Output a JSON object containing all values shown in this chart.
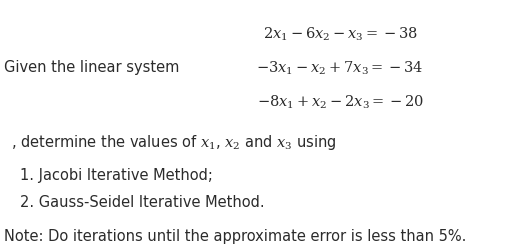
{
  "background_color": "#ffffff",
  "eq1": "$2x_1-6x_2-x_3=-38$",
  "eq2": "$-3x_1-x_2+7x_3=-34$",
  "eq3": "$-8x_1+x_2-2x_3=-20$",
  "prefix": "Given the linear system",
  "middle_text1": ", determine the values of ",
  "middle_math": "$x_1$, $x_2$",
  "middle_text2": "and ",
  "middle_math2": "$x_3$",
  "middle_text3": " using",
  "item1": "1. Jacobi Iterative Method;",
  "item2": "2. Gauss-Seidel Iterative Method.",
  "note": "Note: Do iterations until the approximate error is less than 5%.",
  "text_color": "#2b2b2b",
  "fontsize": 10.5
}
